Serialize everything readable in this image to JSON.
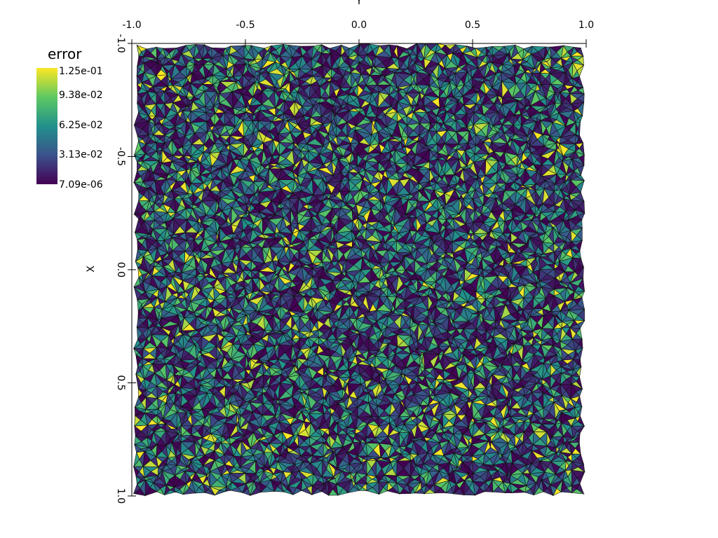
{
  "colorbar": {
    "title": "error",
    "labels": [
      "1.25e-01",
      "9.38e-02",
      "6.25e-02",
      "3.13e-02",
      "7.09e-06"
    ]
  },
  "top_axis": {
    "title": "Y",
    "ticks": [
      "-1.0",
      "-0.5",
      "0.0",
      "0.5",
      "1.0"
    ]
  },
  "left_axis": {
    "title": "X",
    "ticks": [
      "-1.0",
      "-0.5",
      "0.0",
      "0.5",
      "1.0"
    ]
  },
  "colormap": [
    "#440154",
    "#3b528b",
    "#21918c",
    "#5ec962",
    "#fde725"
  ]
}
